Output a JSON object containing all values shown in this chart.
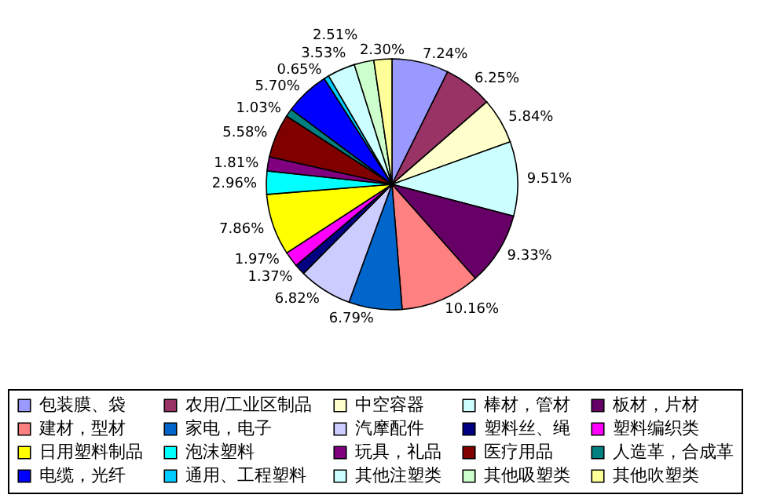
{
  "chart_data": {
    "type": "pie",
    "categories": [
      "包装膜、袋",
      "农用/工业区制品",
      "中空容器",
      "棒材，管材",
      "板材，片材",
      "建材，型材",
      "家电，电子",
      "汽摩配件",
      "塑料丝、绳",
      "塑料编织类",
      "日用塑料制品",
      "泡沫塑料",
      "玩具，礼品",
      "医疗用品",
      "人造革，合成革",
      "电缆，光纤",
      "通用、工程塑料",
      "其他注塑类",
      "其他吸塑类",
      "其他吹塑类"
    ],
    "values": [
      7.24,
      6.25,
      5.84,
      9.51,
      9.33,
      10.16,
      6.79,
      6.82,
      1.37,
      1.97,
      7.86,
      2.96,
      1.81,
      5.58,
      1.03,
      5.7,
      0.65,
      3.53,
      2.51,
      2.3
    ],
    "value_labels": [
      "7.24%",
      "6.25%",
      "5.84%",
      "9.51%",
      "9.33%",
      "10.16%",
      "6.79%",
      "6.82%",
      "1.37%",
      "1.97%",
      "7.86%",
      "2.96%",
      "1.81%",
      "5.58%",
      "1.03%",
      "5.70%",
      "0.65%",
      "3.53%",
      "2.51%",
      "2.30%"
    ],
    "colors": [
      "#9999ff",
      "#993366",
      "#ffffcc",
      "#ccffff",
      "#660066",
      "#ff8080",
      "#0066cc",
      "#ccccff",
      "#000080",
      "#ff00ff",
      "#ffff00",
      "#00ffff",
      "#800080",
      "#800000",
      "#008080",
      "#0000ff",
      "#00ccff",
      "#ccffff",
      "#ccffcc",
      "#ffff99"
    ],
    "legend": "bottom"
  }
}
